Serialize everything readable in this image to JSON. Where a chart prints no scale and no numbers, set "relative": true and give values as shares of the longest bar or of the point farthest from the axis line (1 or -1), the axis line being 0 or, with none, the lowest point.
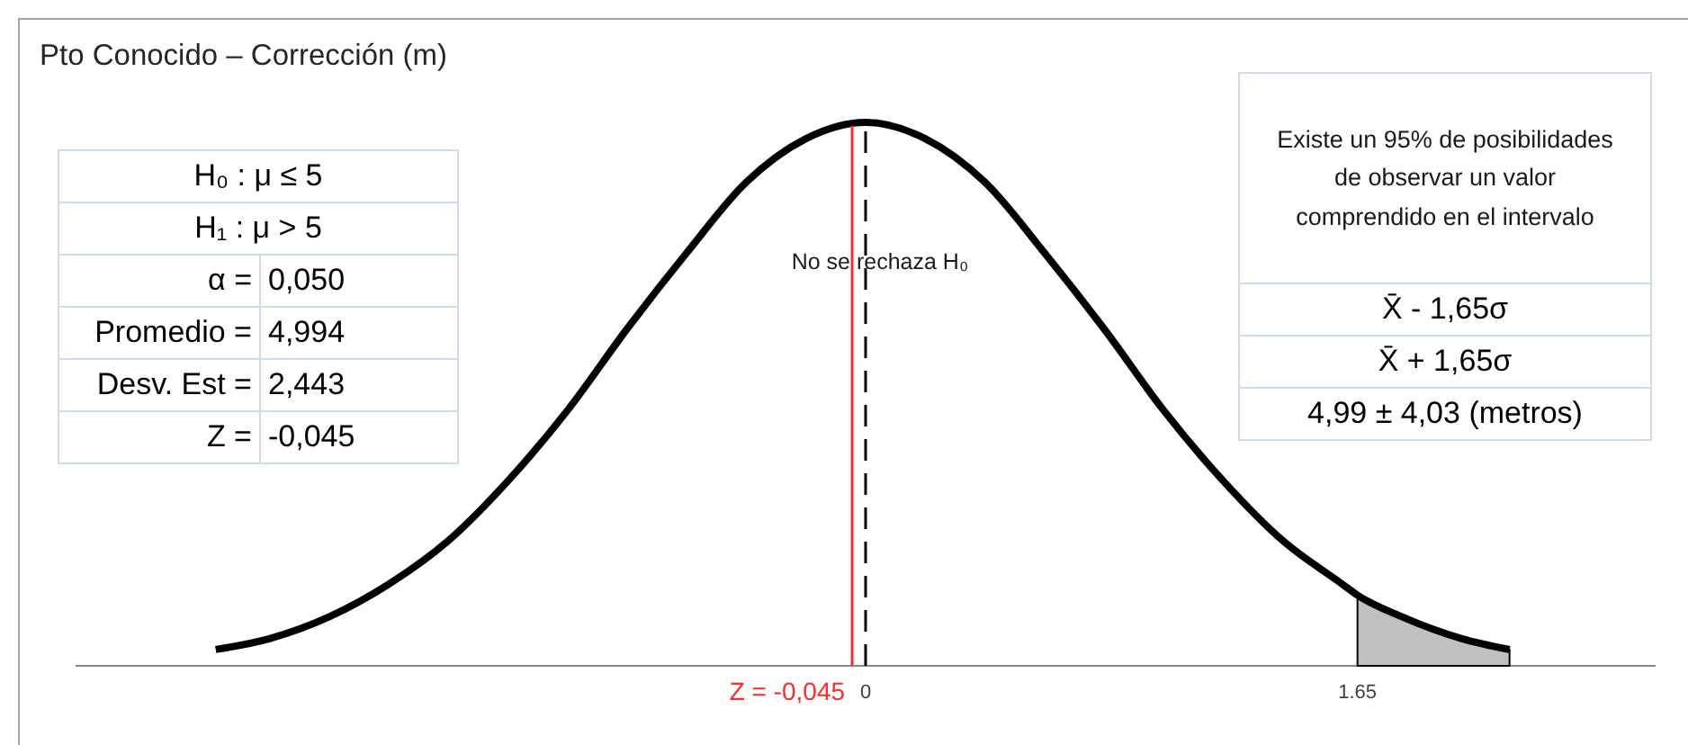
{
  "chart_data": {
    "type": "line",
    "title": "Pto Conocido – Corrección (m)",
    "relative": true,
    "xlim": [
      -2.65,
      2.65
    ],
    "xticks": [
      0,
      1.65
    ],
    "series": [
      {
        "type": "line",
        "color": "#000000",
        "x": [
          -2.18,
          -2.0,
          -1.8,
          -1.6,
          -1.4,
          -1.2,
          -1.0,
          -0.8,
          -0.6,
          -0.4,
          -0.2,
          0,
          0.2,
          0.4,
          0.6,
          0.8,
          1.0,
          1.2,
          1.4,
          1.6,
          1.65,
          1.8,
          2.0,
          2.16
        ],
        "values": [
          0.03,
          0.05,
          0.09,
          0.15,
          0.23,
          0.34,
          0.47,
          0.62,
          0.76,
          0.89,
          0.97,
          1,
          0.97,
          0.89,
          0.76,
          0.62,
          0.47,
          0.34,
          0.23,
          0.15,
          0.13,
          0.09,
          0.05,
          0.03
        ]
      },
      {
        "type": "area",
        "color": "#c0c0c0",
        "x": [
          1.65,
          1.8,
          2.0,
          2.16
        ],
        "values": [
          0.13,
          0.09,
          0.05,
          0.03
        ]
      }
    ],
    "ref_lines": [
      {
        "axis": "x",
        "value": 0,
        "color": "#000000",
        "line_style": "dashed"
      },
      {
        "axis": "x",
        "value": -0.045,
        "label": "Z = -0,045",
        "color": "#ff2a2a"
      }
    ],
    "annotations": [
      "No se rechaza H₀",
      "H₀ : μ ≤ 5",
      "H₁ : μ > 5",
      "α =",
      "0,050",
      "Promedio =",
      "4,994",
      "Desv. Est =",
      "2,443",
      "Z =",
      "-0,045",
      "Existe un 95% de posibilidades de observar un valor comprendido en el intervalo",
      "X̄ - 1,65σ",
      "X̄ + 1,65σ",
      "4,99 ± 4,03 (metros)"
    ]
  }
}
